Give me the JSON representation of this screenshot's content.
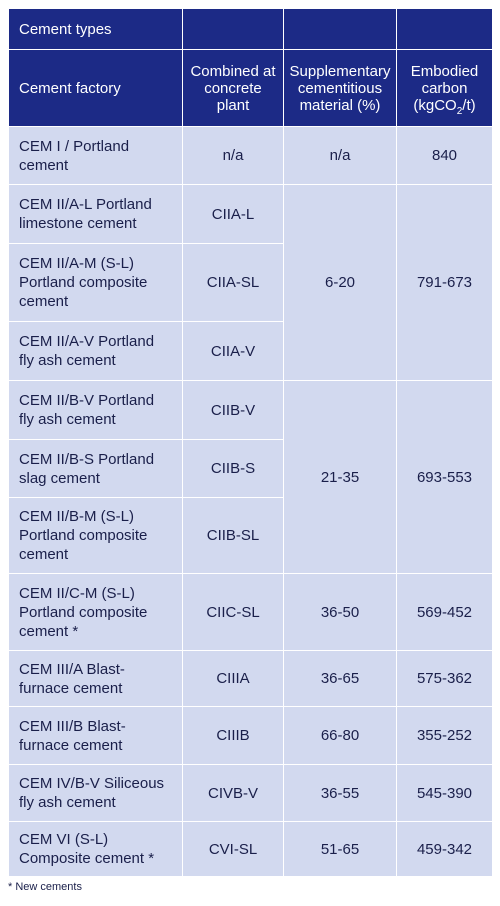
{
  "table": {
    "title": "Cement types",
    "headers": {
      "factory": "Cement factory",
      "combined": "Combined at concrete plant",
      "scm": "Supplementary cementitious material (%)",
      "carbon_pre": "Embodied carbon (kgCO",
      "carbon_sub": "2",
      "carbon_post": "/t)"
    },
    "rows": [
      {
        "factory": "CEM I / Portland cement",
        "combined": "n/a",
        "scm": "n/a",
        "carbon": "840"
      },
      {
        "factory": "CEM II/A-L Portland limestone cement",
        "combined": "CIIA-L",
        "scm": "6-20",
        "carbon": "791-673"
      },
      {
        "factory": "CEM II/A-M (S-L) Portland composite cement",
        "combined": "CIIA-SL"
      },
      {
        "factory": "CEM II/A-V Portland fly ash cement",
        "combined": "CIIA-V"
      },
      {
        "factory": "CEM II/B-V Portland fly ash cement",
        "combined": "CIIB-V",
        "scm": "21-35",
        "carbon": "693-553"
      },
      {
        "factory": "CEM II/B-S Portland slag cement",
        "combined": "CIIB-S"
      },
      {
        "factory": "CEM II/B-M (S-L) Portland composite cement",
        "combined": "CIIB-SL"
      },
      {
        "factory": "CEM II/C-M (S-L) Portland composite cement *",
        "combined": "CIIC-SL",
        "scm": "36-50",
        "carbon": "569-452"
      },
      {
        "factory": "CEM III/A Blast-furnace cement",
        "combined": "CIIIA",
        "scm": "36-65",
        "carbon": "575-362"
      },
      {
        "factory": "CEM III/B Blast-furnace cement",
        "combined": "CIIIB",
        "scm": "66-80",
        "carbon": "355-252"
      },
      {
        "factory": "CEM IV/B-V Siliceous fly ash cement",
        "combined": "CIVB-V",
        "scm": "36-55",
        "carbon": "545-390"
      },
      {
        "factory": "CEM VI (S-L) Composite cement *",
        "combined": "CVI-SL",
        "scm": "51-65",
        "carbon": "459-342"
      }
    ]
  },
  "footnote": "* New cements",
  "colors": {
    "header_bg": "#1c2a86",
    "cell_bg": "#d2d9ef",
    "text": "#1a1f4a"
  }
}
